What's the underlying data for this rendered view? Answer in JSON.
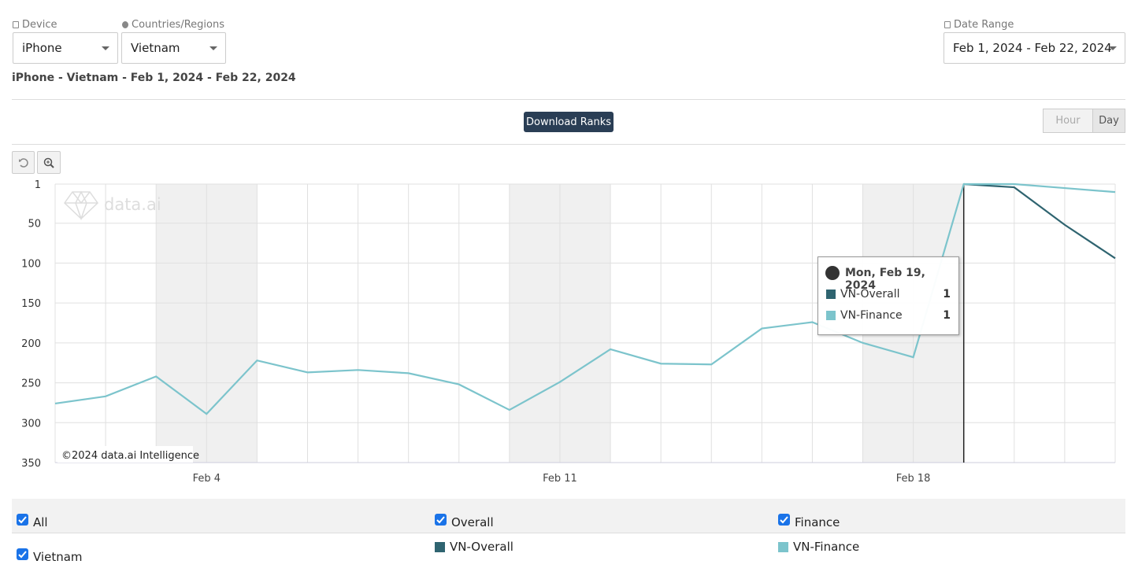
{
  "filters": {
    "device_label": "Device",
    "device": "iPhone",
    "region_label": "Countries/Regions",
    "region": "Vietnam",
    "date_label": "Date Range",
    "date_range": "Feb 1, 2024 - Feb 22, 2024"
  },
  "subtitle": "iPhone - Vietnam - Feb 1, 2024 - Feb 22, 2024",
  "buttons": {
    "download": "Download Ranks",
    "hour": "Hour",
    "day": "Day"
  },
  "chart_data": {
    "type": "line",
    "categories": [
      null,
      null,
      null,
      "Feb 4",
      null,
      null,
      null,
      null,
      null,
      null,
      "Feb 11",
      null,
      null,
      null,
      null,
      null,
      null,
      "Feb 18",
      null,
      null,
      null,
      null
    ],
    "series": [
      {
        "name": "VN-Overall",
        "color": "#2f6470",
        "values": [
          null,
          null,
          null,
          null,
          null,
          null,
          null,
          null,
          null,
          null,
          null,
          null,
          null,
          null,
          null,
          null,
          null,
          null,
          1,
          5,
          52,
          94
        ]
      },
      {
        "name": "VN-Finance",
        "color": "#7cc4cc",
        "values": [
          276,
          267,
          242,
          289,
          222,
          237,
          234,
          238,
          252,
          284,
          249,
          208,
          226,
          227,
          182,
          174,
          200,
          218,
          1,
          1,
          6,
          11
        ]
      }
    ],
    "ylim": [
      1,
      350
    ],
    "y_inverted": true,
    "yticks": [
      1,
      50,
      100,
      150,
      200,
      250,
      300,
      350
    ],
    "grid": true,
    "watermark": "data.ai",
    "credit": "©2024 data.ai Intelligence",
    "tooltip_title": "Mon, Feb 19, 2024"
  },
  "legend": {
    "all": "All",
    "overall": "Overall",
    "finance": "Finance",
    "region": "Vietnam"
  }
}
